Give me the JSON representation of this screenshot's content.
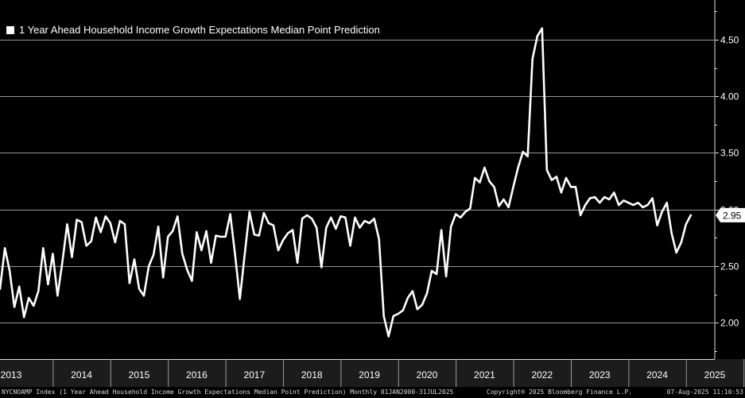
{
  "chart_data": {
    "type": "line",
    "title": "1 Year Ahead Household Income Growth Expectations Median Point Prediction",
    "series": [
      {
        "name": "1 Year Ahead Household Income Growth Expectations Median Point Prediction",
        "color": "#ffffff",
        "x_start": "2013-01",
        "frequency": "monthly",
        "values": [
          2.27,
          2.3,
          2.66,
          2.46,
          2.14,
          2.32,
          2.05,
          2.22,
          2.15,
          2.28,
          2.66,
          2.34,
          2.61,
          2.24,
          2.54,
          2.87,
          2.58,
          2.91,
          2.89,
          2.68,
          2.72,
          2.93,
          2.8,
          2.94,
          2.88,
          2.71,
          2.9,
          2.87,
          2.35,
          2.56,
          2.3,
          2.24,
          2.5,
          2.6,
          2.85,
          2.4,
          2.76,
          2.81,
          2.94,
          2.61,
          2.47,
          2.37,
          2.8,
          2.64,
          2.81,
          2.53,
          2.77,
          2.76,
          2.76,
          2.96,
          2.6,
          2.21,
          2.6,
          2.98,
          2.78,
          2.77,
          2.97,
          2.88,
          2.86,
          2.64,
          2.73,
          2.79,
          2.82,
          2.53,
          2.92,
          2.95,
          2.92,
          2.84,
          2.49,
          2.84,
          2.93,
          2.83,
          2.94,
          2.93,
          2.68,
          2.93,
          2.84,
          2.9,
          2.88,
          2.92,
          2.74,
          2.06,
          1.88,
          2.06,
          2.08,
          2.11,
          2.22,
          2.28,
          2.12,
          2.16,
          2.26,
          2.46,
          2.43,
          2.82,
          2.41,
          2.85,
          2.96,
          2.93,
          2.98,
          3.01,
          3.28,
          3.24,
          3.37,
          3.25,
          3.2,
          3.03,
          3.09,
          3.02,
          3.2,
          3.37,
          3.51,
          3.47,
          4.33,
          4.53,
          4.6,
          3.35,
          3.26,
          3.29,
          3.15,
          3.28,
          3.2,
          3.2,
          2.95,
          3.04,
          3.1,
          3.11,
          3.06,
          3.11,
          3.09,
          3.15,
          3.04,
          3.08,
          3.06,
          3.04,
          3.06,
          3.02,
          3.04,
          3.1,
          2.86,
          2.98,
          3.06,
          2.79,
          2.62,
          2.71,
          2.87,
          2.95
        ]
      }
    ],
    "last_value_label": "2.95",
    "y_ticks": [
      "2.00",
      "2.50",
      "3.00",
      "3.50",
      "4.00",
      "4.50"
    ],
    "ylim": [
      1.68,
      4.85
    ],
    "x_ticks": [
      "2013",
      "2014",
      "2015",
      "2016",
      "2017",
      "2018",
      "2019",
      "2020",
      "2021",
      "2022",
      "2023",
      "2024",
      "2025"
    ],
    "xlabel": "",
    "ylabel": "",
    "grid": "horizontal",
    "legend_position": "top-left"
  },
  "colors": {
    "background": "#000000",
    "line": "#ffffff",
    "grid": "#bdbdbd",
    "axis_band": "#1c1c1c"
  },
  "footer": {
    "ticker": "NYCNOAMP Index (1 Year Ahead Household Income Growth Expectations Median Point Prediction)  Monthly 01JAN2000-31JUL2025",
    "copyright": "Copyright® 2025 Bloomberg Finance L.P.",
    "timestamp": "07-Aug-2025 11:10:53"
  }
}
